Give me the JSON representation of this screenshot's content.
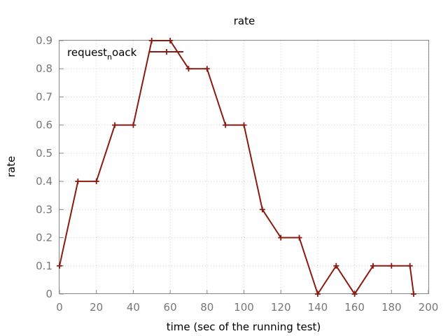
{
  "chart_data": {
    "type": "line",
    "title": "rate",
    "xlabel": "time (sec of the running test)",
    "ylabel": "rate",
    "xlim": [
      0,
      200
    ],
    "ylim": [
      0,
      0.9
    ],
    "xticks": [
      0,
      20,
      40,
      60,
      80,
      100,
      120,
      140,
      160,
      180,
      200
    ],
    "yticks": [
      0,
      0.1,
      0.2,
      0.3,
      0.4,
      0.5,
      0.6,
      0.7,
      0.8,
      0.9
    ],
    "grid": true,
    "legend_position": "top-left",
    "legend": {
      "label_main": "request",
      "label_sub": "n",
      "label_tail": "oack"
    },
    "colors": {
      "series": "#8b1a10",
      "tick_text": "#777777",
      "grid": "#cfcfcf",
      "frame": "#888888"
    },
    "series": [
      {
        "x": [
          0,
          10,
          20,
          30,
          40,
          50,
          60,
          70,
          80,
          90,
          100,
          110,
          120,
          130,
          140,
          150,
          160,
          170,
          180,
          190,
          192
        ],
        "values": [
          0.1,
          0.4,
          0.4,
          0.6,
          0.6,
          0.9,
          0.9,
          0.8,
          0.8,
          0.6,
          0.6,
          0.3,
          0.2,
          0.2,
          0.0,
          0.1,
          0.0,
          0.1,
          0.1,
          0.1,
          0.0
        ]
      }
    ]
  }
}
